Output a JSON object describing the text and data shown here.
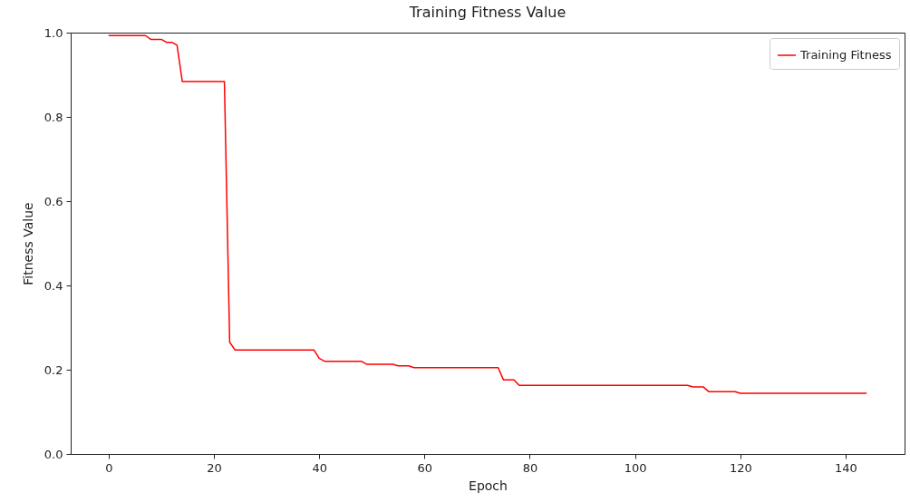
{
  "chart_data": {
    "type": "line",
    "title": "Training Fitness Value",
    "xlabel": "Epoch",
    "ylabel": "Fitness Value",
    "x": [
      0,
      7,
      8,
      10,
      11,
      12,
      13,
      14,
      22,
      23,
      24,
      39,
      40,
      41,
      48,
      49,
      54,
      55,
      57,
      58,
      74,
      75,
      77,
      78,
      110,
      111,
      113,
      114,
      119,
      120,
      144
    ],
    "series": [
      {
        "name": "Training Fitness",
        "color": "#ff0000",
        "values": [
          0.993,
          0.993,
          0.984,
          0.984,
          0.977,
          0.977,
          0.97,
          0.884,
          0.884,
          0.265,
          0.247,
          0.247,
          0.227,
          0.22,
          0.22,
          0.213,
          0.213,
          0.209,
          0.209,
          0.205,
          0.205,
          0.176,
          0.176,
          0.163,
          0.163,
          0.159,
          0.159,
          0.148,
          0.148,
          0.144,
          0.144
        ]
      }
    ],
    "xlim": [
      -7.2,
      151.2
    ],
    "xticks": [
      0,
      20,
      40,
      60,
      80,
      100,
      120,
      140
    ],
    "ylim": [
      0,
      1
    ],
    "yticks": [
      {
        "value": 0,
        "label": "0.0"
      },
      0.2,
      0.4,
      0.6,
      0.8,
      {
        "value": 1,
        "label": "1.0"
      }
    ],
    "grid": false,
    "legend": "top right",
    "marker": "none",
    "line_style": "solid"
  }
}
